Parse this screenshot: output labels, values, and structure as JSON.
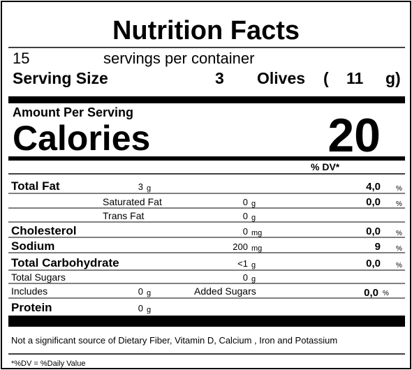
{
  "header": {
    "title": "Nutrition Facts",
    "servings": "15",
    "servings_label": "servings per container",
    "serving_size_label": "Serving Size",
    "serving_amount": "3",
    "serving_unit": "Olives",
    "open_paren": "(",
    "serving_weight": "11",
    "serving_weight_close": "g)"
  },
  "calories": {
    "amount_label": "Amount Per Serving",
    "label": "Calories",
    "value": "20"
  },
  "dv_header": "% DV*",
  "nutrients": [
    {
      "name": "Total Fat",
      "amount": "3",
      "unit": "g",
      "dv": "4,0",
      "pct": "%"
    },
    {
      "name": "Saturated Fat",
      "amount": "0",
      "unit": "g",
      "dv": "0,0",
      "pct": "%"
    },
    {
      "name": "Trans Fat",
      "amount": "0",
      "unit": "g"
    },
    {
      "name": "Cholesterol",
      "amount": "0",
      "unit": "mg",
      "dv": "0,0",
      "pct": "%"
    },
    {
      "name": "Sodium",
      "amount": "200",
      "unit": "mg",
      "dv": "9",
      "pct": "%"
    },
    {
      "name": "Total Carbohydrate",
      "amount": "<1",
      "unit": "g",
      "dv": "0,0",
      "pct": "%"
    },
    {
      "name": "Total Sugars",
      "amount": "0",
      "unit": "g"
    },
    {
      "name": "Includes",
      "amount": "0",
      "unit": "g",
      "extra": "Added Sugars",
      "dv": "0,0",
      "pct": "%"
    },
    {
      "name": "Protein",
      "amount": "0",
      "unit": "g"
    }
  ],
  "footnote": "Not a significant source of Dietary Fiber, Vitamin D, Calcium , Iron and Potassium",
  "dv_note": "*%DV = %Daily Value"
}
